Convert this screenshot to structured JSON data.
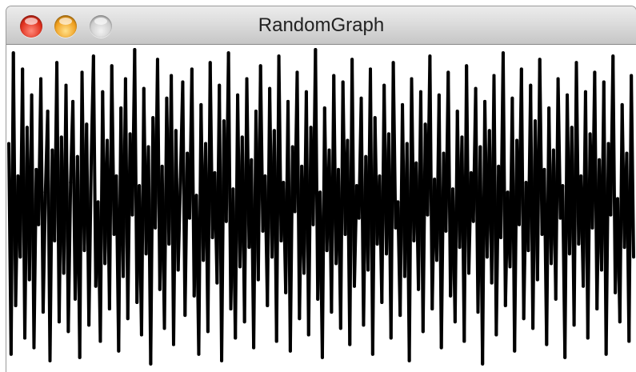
{
  "window": {
    "title": "RandomGraph"
  },
  "controls": {
    "close_icon": "close-circle-icon",
    "minimize_icon": "minimize-circle-icon",
    "zoom_icon": "zoom-circle-icon",
    "colors": {
      "close": "#e0301e",
      "minimize": "#f0a020",
      "zoom": "#cfcfcf"
    }
  },
  "chart_data": {
    "type": "line",
    "title": "",
    "xlabel": "",
    "ylabel": "",
    "grid": false,
    "line_color": "#000000",
    "ylim": [
      0,
      1
    ],
    "values": [
      0.7,
      0.05,
      0.98,
      0.2,
      0.6,
      0.35,
      0.93,
      0.1,
      0.75,
      0.28,
      0.85,
      0.07,
      0.62,
      0.45,
      0.9,
      0.18,
      0.55,
      0.8,
      0.03,
      0.68,
      0.4,
      0.95,
      0.15,
      0.72,
      0.3,
      0.88,
      0.12,
      0.58,
      0.83,
      0.22,
      0.66,
      0.04,
      0.92,
      0.37,
      0.76,
      0.14,
      0.64,
      0.97,
      0.26,
      0.52,
      0.09,
      0.86,
      0.33,
      0.71,
      0.19,
      0.94,
      0.42,
      0.6,
      0.06,
      0.81,
      0.29,
      0.9,
      0.16,
      0.73,
      0.48,
      0.99,
      0.21,
      0.57,
      0.11,
      0.87,
      0.36,
      0.69,
      0.02,
      0.78,
      0.44,
      0.96,
      0.25,
      0.63,
      0.13,
      0.84,
      0.39,
      0.91,
      0.08,
      0.74,
      0.31,
      0.59,
      0.89,
      0.17,
      0.67,
      0.47,
      0.93,
      0.23,
      0.54,
      0.05,
      0.82,
      0.34,
      0.7,
      0.12,
      0.95,
      0.41,
      0.61,
      0.27,
      0.88,
      0.03,
      0.77,
      0.46,
      0.98,
      0.19,
      0.56,
      0.1,
      0.85,
      0.32,
      0.72,
      0.15,
      0.9,
      0.38,
      0.65,
      0.07,
      0.8,
      0.28,
      0.94,
      0.43,
      0.6,
      0.2,
      0.87,
      0.35,
      0.74,
      0.09,
      0.97,
      0.4,
      0.58,
      0.24,
      0.83,
      0.06,
      0.69,
      0.49,
      0.92,
      0.16,
      0.63,
      0.3,
      0.86,
      0.11,
      0.75,
      0.45,
      0.99,
      0.22,
      0.55,
      0.04,
      0.81,
      0.37,
      0.68,
      0.18,
      0.91,
      0.33,
      0.62,
      0.13,
      0.89,
      0.42,
      0.71,
      0.08,
      0.96,
      0.26,
      0.57,
      0.47,
      0.84,
      0.14,
      0.66,
      0.31,
      0.93,
      0.05,
      0.78,
      0.39,
      0.6,
      0.21,
      0.88,
      0.36,
      0.73,
      0.1,
      0.95,
      0.44,
      0.52,
      0.17,
      0.82,
      0.29,
      0.7,
      0.03,
      0.9,
      0.4,
      0.64,
      0.25,
      0.86,
      0.12,
      0.76,
      0.48,
      0.97,
      0.19,
      0.59,
      0.34,
      0.85,
      0.07,
      0.67,
      0.43,
      0.92,
      0.23,
      0.56,
      0.15,
      0.8,
      0.38,
      0.72,
      0.09,
      0.94,
      0.3,
      0.61,
      0.46,
      0.87,
      0.18,
      0.69,
      0.02,
      0.83,
      0.35,
      0.74,
      0.27,
      0.91,
      0.11,
      0.63,
      0.41,
      0.98,
      0.2,
      0.55,
      0.32,
      0.84,
      0.06,
      0.71,
      0.45,
      0.93,
      0.16,
      0.58,
      0.37,
      0.88,
      0.13,
      0.77,
      0.28,
      0.96,
      0.42,
      0.62,
      0.08,
      0.81,
      0.33,
      0.68,
      0.22,
      0.9,
      0.47,
      0.57,
      0.04,
      0.85,
      0.36,
      0.75,
      0.14,
      0.95,
      0.39,
      0.6,
      0.26,
      0.86,
      0.1,
      0.73,
      0.44,
      0.92,
      0.19,
      0.65,
      0.31,
      0.89,
      0.05,
      0.7,
      0.48,
      0.97,
      0.24,
      0.53,
      0.15,
      0.82,
      0.38,
      0.67,
      0.09,
      0.91,
      0.35
    ]
  }
}
